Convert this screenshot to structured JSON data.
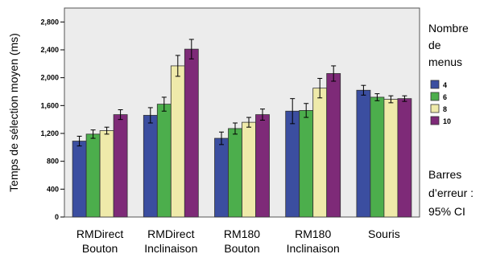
{
  "chart_data": {
    "type": "bar",
    "ylabel": "Temps de sélection moyen (ms)",
    "ylim": [
      0,
      3000
    ],
    "yticks": [
      "0",
      "400",
      "800",
      "1,200",
      "1,600",
      "2,000",
      "2,400",
      "2,800"
    ],
    "categories": [
      [
        "RMDirect",
        "Bouton"
      ],
      [
        "RMDirect",
        "Inclinaison"
      ],
      [
        "RM180",
        "Bouton"
      ],
      [
        "RM180",
        "Inclinaison"
      ],
      [
        "Souris"
      ]
    ],
    "legend": {
      "title": [
        "Nombre",
        "de",
        "menus"
      ],
      "position": "right"
    },
    "series": [
      {
        "name": "4",
        "color": "#3b4ea0",
        "values": [
          1090,
          1460,
          1130,
          1520,
          1820
        ],
        "err": [
          70,
          110,
          90,
          180,
          70
        ]
      },
      {
        "name": "6",
        "color": "#4cae4c",
        "values": [
          1190,
          1620,
          1270,
          1530,
          1720
        ],
        "err": [
          60,
          100,
          80,
          100,
          50
        ]
      },
      {
        "name": "8",
        "color": "#efeaaa",
        "values": [
          1240,
          2170,
          1360,
          1850,
          1690
        ],
        "err": [
          50,
          150,
          70,
          140,
          50
        ]
      },
      {
        "name": "10",
        "color": "#7e2a78",
        "values": [
          1470,
          2410,
          1470,
          2060,
          1700
        ],
        "err": [
          70,
          140,
          80,
          110,
          40
        ]
      }
    ],
    "note": [
      "Barres",
      "d’erreur :",
      "95% CI"
    ],
    "grid": false
  }
}
